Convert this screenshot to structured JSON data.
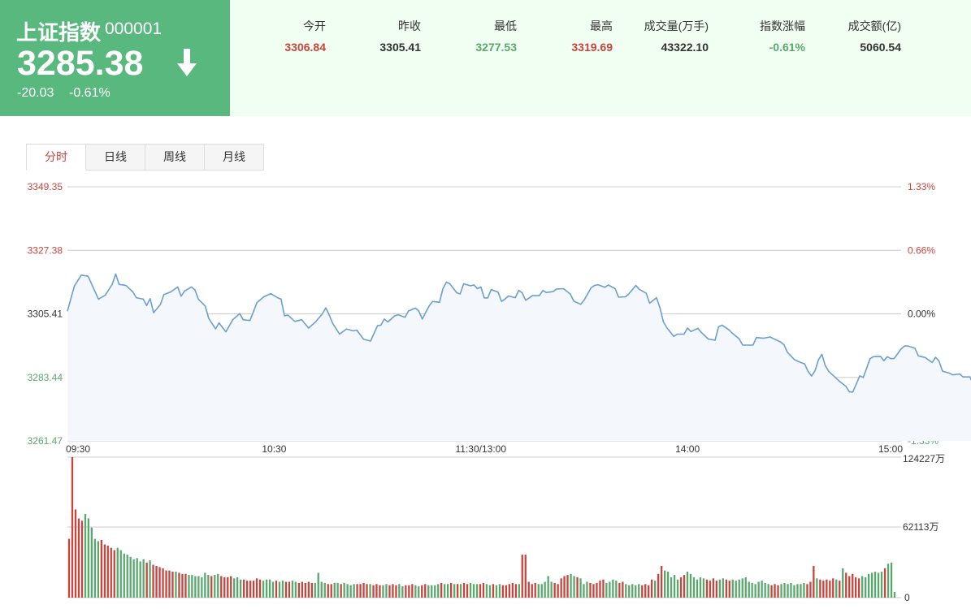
{
  "quote": {
    "name": "上证指数",
    "code": "000001",
    "price": "3285.38",
    "change": "-20.03",
    "change_pct": "-0.61%",
    "direction": "down"
  },
  "stats": [
    {
      "label": "今开",
      "value": "3306.84",
      "color": "#c8443d"
    },
    {
      "label": "昨收",
      "value": "3305.41",
      "color": "#333333"
    },
    {
      "label": "最低",
      "value": "3277.53",
      "color": "#59a86e"
    },
    {
      "label": "最高",
      "value": "3319.69",
      "color": "#c8443d"
    },
    {
      "label": "成交量(万手)",
      "value": "43322.10",
      "color": "#333333"
    },
    {
      "label": "指数涨幅",
      "value": "-0.61%",
      "color": "#59a86e"
    },
    {
      "label": "成交额(亿)",
      "value": "5060.54",
      "color": "#333333"
    }
  ],
  "tabs": [
    "分时",
    "日线",
    "周线",
    "月线"
  ],
  "active_tab": 0,
  "colors": {
    "up": "#c8443d",
    "down": "#59a86e",
    "line": "#6a9fd0",
    "header_green": "#59b87d",
    "header_bg": "#f0fff2"
  },
  "chart_data": {
    "type": "line",
    "title": "",
    "price_axis": {
      "ticks": [
        "3349.35",
        "3327.38",
        "3305.41",
        "3283.44",
        "3261.47"
      ],
      "tick_values": [
        3349.35,
        3327.38,
        3305.41,
        3283.44,
        3261.47
      ],
      "ylim": [
        3261.47,
        3349.35
      ]
    },
    "pct_axis": {
      "ticks": [
        "1.33%",
        "0.66%",
        "0.00%",
        "-0.66%",
        "-1.33%"
      ]
    },
    "time_labels": [
      "09:30",
      "10:30",
      "11:30/13:00",
      "14:00",
      "15:00"
    ],
    "time_label_slots": [
      0,
      60,
      120,
      180,
      240
    ],
    "prev_close": 3305.41,
    "price_series": [
      [
        0,
        3306.3
      ],
      [
        2,
        3315.0
      ],
      [
        4,
        3318.8
      ],
      [
        6,
        3318.4
      ],
      [
        9,
        3310.5
      ],
      [
        11,
        3311.9
      ],
      [
        13,
        3315.6
      ],
      [
        14,
        3319.2
      ],
      [
        15,
        3315.6
      ],
      [
        17,
        3315.2
      ],
      [
        19,
        3313.0
      ],
      [
        20,
        3311.0
      ],
      [
        22,
        3310.5
      ],
      [
        23,
        3308.3
      ],
      [
        24,
        3310.7
      ],
      [
        25,
        3305.8
      ],
      [
        27,
        3308.7
      ],
      [
        28,
        3312.1
      ],
      [
        30,
        3313.0
      ],
      [
        32,
        3314.7
      ],
      [
        33,
        3311.5
      ],
      [
        34,
        3313.3
      ],
      [
        36,
        3314.7
      ],
      [
        37,
        3313.7
      ],
      [
        38,
        3310.5
      ],
      [
        40,
        3308.1
      ],
      [
        41,
        3303.9
      ],
      [
        43,
        3300.2
      ],
      [
        44,
        3302.3
      ],
      [
        46,
        3299.2
      ],
      [
        48,
        3303.4
      ],
      [
        50,
        3305.5
      ],
      [
        51,
        3303.4
      ],
      [
        53,
        3303.1
      ],
      [
        55,
        3309.3
      ],
      [
        57,
        3311.3
      ],
      [
        59,
        3312.4
      ],
      [
        61,
        3311.0
      ],
      [
        62,
        3310.5
      ],
      [
        63,
        3304.7
      ],
      [
        64,
        3305.0
      ],
      [
        66,
        3302.8
      ],
      [
        68,
        3303.4
      ],
      [
        70,
        3300.5
      ],
      [
        72,
        3302.6
      ],
      [
        74,
        3305.4
      ],
      [
        75,
        3307.5
      ],
      [
        76,
        3305.0
      ],
      [
        77,
        3302.1
      ],
      [
        79,
        3298.4
      ],
      [
        81,
        3300.2
      ],
      [
        83,
        3299.5
      ],
      [
        84,
        3299.8
      ],
      [
        86,
        3296.6
      ],
      [
        88,
        3296.0
      ],
      [
        90,
        3301.3
      ],
      [
        91,
        3301.5
      ],
      [
        92,
        3303.6
      ],
      [
        93,
        3302.6
      ],
      [
        95,
        3304.7
      ],
      [
        96,
        3305.1
      ],
      [
        98,
        3304.2
      ],
      [
        99,
        3306.4
      ],
      [
        101,
        3307.4
      ],
      [
        102,
        3306.4
      ],
      [
        103,
        3303.6
      ],
      [
        105,
        3308.2
      ],
      [
        106,
        3309.7
      ],
      [
        108,
        3309.4
      ],
      [
        109,
        3314.1
      ],
      [
        110,
        3316.4
      ],
      [
        111,
        3315.8
      ],
      [
        113,
        3312.7
      ],
      [
        114,
        3312.3
      ],
      [
        115,
        3315.8
      ],
      [
        117,
        3315.1
      ],
      [
        118,
        3315.4
      ],
      [
        119,
        3314.1
      ],
      [
        120,
        3314.7
      ],
      [
        121,
        3310.9
      ],
      [
        122,
        3310.9
      ],
      [
        123,
        3313.8
      ],
      [
        125,
        3312.9
      ],
      [
        126,
        3309.7
      ],
      [
        127,
        3310.5
      ],
      [
        128,
        3311.6
      ],
      [
        130,
        3311.0
      ],
      [
        131,
        3313.5
      ],
      [
        132,
        3312.7
      ],
      [
        133,
        3310.1
      ],
      [
        135,
        3311.7
      ],
      [
        137,
        3311.7
      ],
      [
        138,
        3313.5
      ],
      [
        139,
        3312.8
      ],
      [
        141,
        3313.1
      ],
      [
        142,
        3314.0
      ],
      [
        144,
        3314.1
      ],
      [
        146,
        3312.2
      ],
      [
        147,
        3309.8
      ],
      [
        149,
        3308.7
      ],
      [
        150,
        3310.2
      ],
      [
        152,
        3314.4
      ],
      [
        153,
        3315.2
      ],
      [
        154,
        3315.5
      ],
      [
        156,
        3314.6
      ],
      [
        157,
        3315.4
      ],
      [
        159,
        3314.1
      ],
      [
        160,
        3311.2
      ],
      [
        162,
        3311.3
      ],
      [
        163,
        3312.4
      ],
      [
        165,
        3315.2
      ],
      [
        166,
        3313.9
      ],
      [
        168,
        3312.5
      ],
      [
        169,
        3309.1
      ],
      [
        171,
        3311.0
      ],
      [
        172,
        3307.5
      ],
      [
        173,
        3302.6
      ],
      [
        174,
        3300.6
      ],
      [
        176,
        3297.6
      ],
      [
        177,
        3298.4
      ],
      [
        179,
        3298.4
      ],
      [
        180,
        3300.5
      ],
      [
        181,
        3299.3
      ],
      [
        183,
        3300.4
      ],
      [
        184,
        3299.0
      ],
      [
        186,
        3296.7
      ],
      [
        188,
        3296.3
      ],
      [
        189,
        3300.9
      ],
      [
        190,
        3301.5
      ],
      [
        192,
        3299.9
      ],
      [
        193,
        3298.7
      ],
      [
        195,
        3296.8
      ],
      [
        196,
        3294.6
      ],
      [
        198,
        3294.6
      ],
      [
        199,
        3294.6
      ],
      [
        200,
        3297.2
      ],
      [
        202,
        3297.0
      ],
      [
        204,
        3297.4
      ],
      [
        205,
        3296.8
      ],
      [
        207,
        3295.7
      ],
      [
        208,
        3294.7
      ],
      [
        209,
        3292.1
      ],
      [
        211,
        3289.6
      ],
      [
        212,
        3289.0
      ],
      [
        214,
        3288.1
      ],
      [
        215,
        3285.5
      ],
      [
        216,
        3283.9
      ],
      [
        217,
        3285.7
      ],
      [
        218,
        3289.5
      ],
      [
        219,
        3291.4
      ],
      [
        220,
        3287.5
      ],
      [
        221,
        3285.5
      ],
      [
        222,
        3284.4
      ],
      [
        224,
        3282.2
      ],
      [
        226,
        3280.3
      ],
      [
        227,
        3278.4
      ],
      [
        228,
        3278.4
      ],
      [
        230,
        3284.0
      ],
      [
        231,
        3283.4
      ],
      [
        233,
        3289.9
      ],
      [
        234,
        3290.6
      ],
      [
        236,
        3290.7
      ],
      [
        237,
        3289.2
      ],
      [
        238,
        3290.6
      ],
      [
        239,
        3289.9
      ],
      [
        240,
        3290.0
      ],
      [
        242,
        3293.3
      ],
      [
        243,
        3294.3
      ],
      [
        244,
        3294.3
      ],
      [
        246,
        3293.5
      ],
      [
        247,
        3290.9
      ],
      [
        249,
        3290.3
      ],
      [
        251,
        3288.6
      ],
      [
        252,
        3290.4
      ],
      [
        253,
        3289.1
      ],
      [
        254,
        3285.6
      ],
      [
        256,
        3284.9
      ],
      [
        257,
        3284.3
      ],
      [
        259,
        3284.6
      ],
      [
        260,
        3283.6
      ],
      [
        262,
        3283.6
      ],
      [
        263,
        3281.0
      ],
      [
        264,
        3283.2
      ],
      [
        265,
        3282.2
      ],
      [
        267,
        3283.5
      ],
      [
        269,
        3284.8
      ],
      [
        271,
        3285.5
      ],
      [
        273,
        3286.2
      ],
      [
        274,
        3287.0
      ],
      [
        276,
        3286.4
      ],
      [
        278,
        3286.9
      ],
      [
        280,
        3286.4
      ],
      [
        281,
        3285.38
      ]
    ],
    "volume_axis": {
      "ticks": [
        "124227万",
        "62113万",
        "0"
      ],
      "max": 124227
    },
    "volume_values": [
      52000,
      124227,
      78000,
      70000,
      68000,
      74000,
      70000,
      62000,
      52000,
      50000,
      51000,
      47000,
      46000,
      44000,
      42000,
      44000,
      42000,
      39000,
      38000,
      36000,
      34000,
      35000,
      32000,
      34000,
      31000,
      33000,
      29000,
      28000,
      27000,
      26000,
      24000,
      24000,
      23000,
      23000,
      22000,
      21000,
      21000,
      20000,
      20000,
      19000,
      19000,
      18000,
      22000,
      20000,
      19000,
      20000,
      21000,
      19000,
      18000,
      18000,
      19000,
      17000,
      18000,
      16000,
      16000,
      15000,
      15000,
      15000,
      17000,
      16000,
      15000,
      16000,
      16000,
      14000,
      15000,
      14000,
      15000,
      14000,
      14000,
      15000,
      14000,
      13000,
      14000,
      13000,
      14000,
      13000,
      13000,
      22000,
      14000,
      13000,
      12000,
      12000,
      13000,
      13000,
      12000,
      13000,
      12000,
      11000,
      12000,
      12000,
      12000,
      13000,
      12000,
      12000,
      11000,
      12000,
      11000,
      11000,
      12000,
      11000,
      12000,
      11000,
      12000,
      10000,
      11000,
      11000,
      12000,
      11000,
      10000,
      11000,
      12000,
      11000,
      11000,
      11000,
      12000,
      13000,
      12000,
      12000,
      13000,
      12000,
      12000,
      12000,
      13000,
      12000,
      13000,
      12000,
      12000,
      12000,
      13000,
      12000,
      11000,
      12000,
      11000,
      12000,
      11000,
      11000,
      12000,
      13000,
      12000,
      12000,
      38000,
      38000,
      14000,
      12000,
      13000,
      12000,
      12000,
      14000,
      19000,
      14000,
      13000,
      12000,
      17000,
      19000,
      20000,
      21000,
      19000,
      18000,
      17000,
      12000,
      14000,
      13000,
      12000,
      13000,
      15000,
      16000,
      13000,
      14000,
      16000,
      15000,
      13000,
      14000,
      12000,
      11000,
      12000,
      11000,
      12000,
      11000,
      12000,
      11000,
      16000,
      15000,
      21000,
      28000,
      24000,
      23000,
      18000,
      20000,
      16000,
      18000,
      20000,
      23000,
      21000,
      18000,
      16000,
      18000,
      17000,
      16000,
      15000,
      17000,
      15000,
      16000,
      17000,
      16000,
      15000,
      16000,
      15000,
      16000,
      17000,
      18000,
      14000,
      13000,
      12000,
      14000,
      15000,
      13000,
      12000,
      11000,
      12000,
      11000,
      12000,
      13000,
      12000,
      13000,
      11000,
      12000,
      12000,
      13000,
      12000,
      14000,
      28000,
      17000,
      16000,
      15000,
      16000,
      15000,
      17000,
      16000,
      15000,
      26000,
      22000,
      19000,
      21000,
      18000,
      17000,
      19000,
      18000,
      21000,
      22000,
      23000,
      22000,
      23000,
      26000,
      30000,
      31000,
      5000
    ]
  }
}
